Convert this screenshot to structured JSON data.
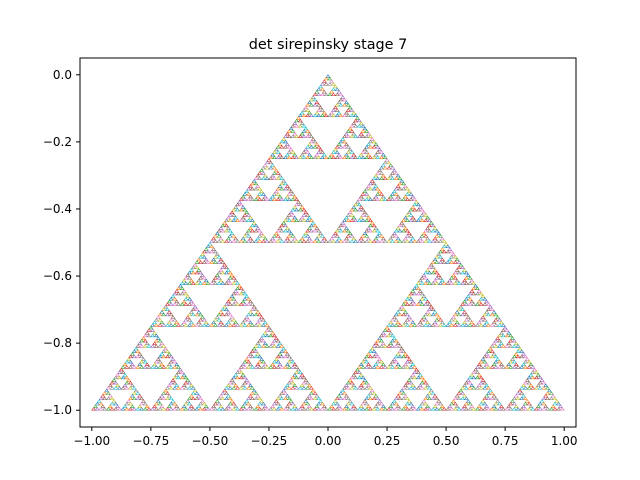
{
  "chart_data": {
    "type": "line",
    "title": "det sirepinsky stage 7",
    "xlabel": "",
    "ylabel": "",
    "xlim": [
      -1.05,
      1.05
    ],
    "ylim": [
      -1.05,
      0.05
    ],
    "grid": false,
    "x_ticks": [
      -1.0,
      -0.75,
      -0.5,
      -0.25,
      0.0,
      0.25,
      0.5,
      0.75,
      1.0
    ],
    "x_tick_labels": [
      "−1.00",
      "−0.75",
      "−0.50",
      "−0.25",
      "0.00",
      "0.25",
      "0.50",
      "0.75",
      "1.00"
    ],
    "y_ticks": [
      0.0,
      -0.2,
      -0.4,
      -0.6,
      -0.8,
      -1.0
    ],
    "y_tick_labels": [
      "0.0",
      "−0.2",
      "−0.4",
      "−0.6",
      "−0.8",
      "−1.0"
    ],
    "fractal": {
      "kind": "sierpinski-triangle",
      "stage": 7,
      "vertices": [
        [
          0.0,
          0.0
        ],
        [
          -1.0,
          -1.0
        ],
        [
          1.0,
          -1.0
        ]
      ]
    },
    "colors": [
      "#1f77b4",
      "#ff7f0e",
      "#2ca02c",
      "#d62728",
      "#9467bd",
      "#8c564b",
      "#e377c2",
      "#7f7f7f",
      "#bcbd22",
      "#17becf"
    ]
  }
}
